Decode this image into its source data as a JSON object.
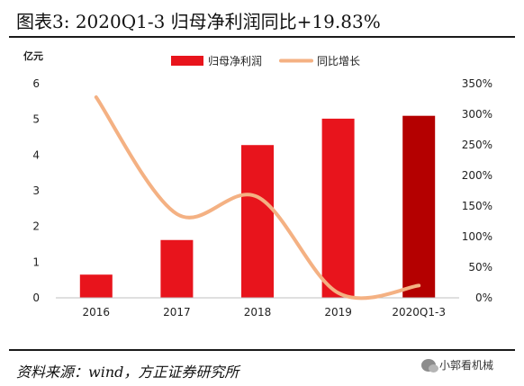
{
  "page": {
    "title": "图表3:   2020Q1-3 归母净利润同比+19.83%",
    "source": "资料来源：wind，方正证券研究所",
    "watermark": "小郭看机械"
  },
  "colors": {
    "bar": "#e8141c",
    "bar_highlight": "#b40000",
    "line": "#f4b183",
    "rule": "#1a1a1a"
  },
  "chart_data": {
    "type": "bar",
    "categories": [
      "2016",
      "2017",
      "2018",
      "2019",
      "2020Q1-3"
    ],
    "series": [
      {
        "name": "归母净利润",
        "type": "bar",
        "axis": "left",
        "values": [
          0.65,
          1.62,
          4.28,
          5.02,
          5.1
        ]
      },
      {
        "name": "同比增长",
        "type": "line",
        "axis": "right",
        "values": [
          328,
          137,
          165,
          8,
          20
        ]
      }
    ],
    "y_left": {
      "unit": "亿元",
      "min": 0,
      "max": 6,
      "ticks": [
        "0",
        "1",
        "2",
        "3",
        "4",
        "5",
        "6"
      ]
    },
    "y_right": {
      "min": 0,
      "max": 350,
      "ticks": [
        "0%",
        "50%",
        "100%",
        "150%",
        "200%",
        "250%",
        "300%",
        "350%"
      ]
    },
    "legend_position": "top-right",
    "grid": false
  }
}
